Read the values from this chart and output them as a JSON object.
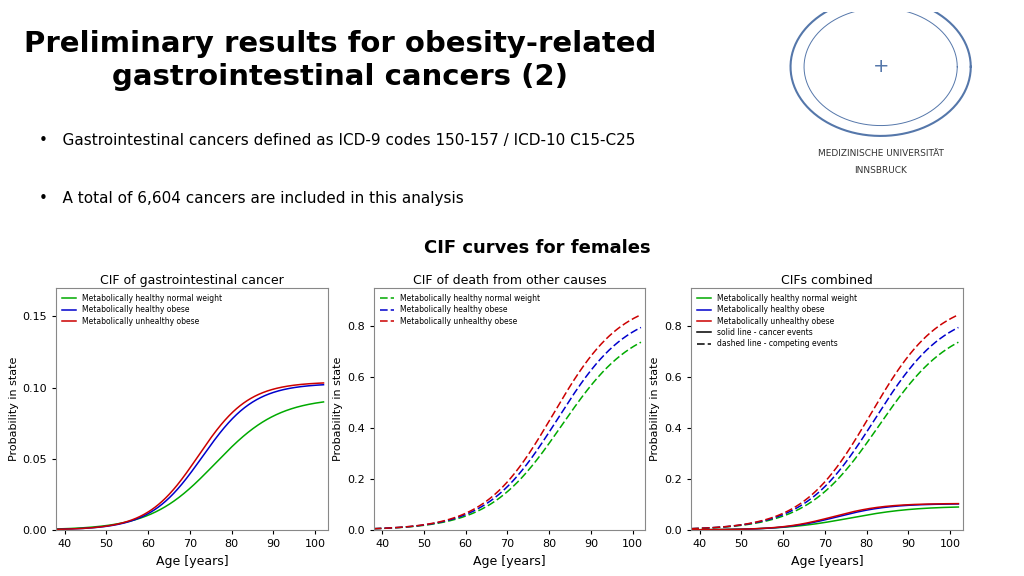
{
  "title": "Preliminary results for obesity-related\ngastrointestinal cancers (2)",
  "bullet1": "Gastrointestinal cancers defined as ICD-9 codes 150-157 / ICD-10 C15-C25",
  "bullet2": "A total of 6,604 cancers are included in this analysis",
  "section_title": "CIF curves for females",
  "plot1_title": "CIF of gastrointestinal cancer",
  "plot2_title": "CIF of death from other causes",
  "plot3_title": "CIFs combined",
  "xlabel": "Age [years]",
  "ylabel": "Probability in state",
  "colors": {
    "green": "#00AA00",
    "blue": "#0000CC",
    "red": "#CC0000",
    "black": "#000000"
  },
  "plot1_ylim": [
    0.0,
    0.17
  ],
  "plot1_yticks": [
    0.0,
    0.05,
    0.1,
    0.15
  ],
  "plot2_ylim": [
    0.0,
    0.95
  ],
  "plot2_yticks": [
    0.0,
    0.2,
    0.4,
    0.6,
    0.8
  ],
  "plot3_ylim": [
    0.0,
    0.95
  ],
  "plot3_yticks": [
    0.0,
    0.2,
    0.4,
    0.6,
    0.8
  ],
  "xticks": [
    40,
    50,
    60,
    70,
    80,
    90,
    100
  ],
  "legend1": [
    "Metabolically healthy normal weight",
    "Metabolically healthy obese",
    "Metabolically unhealthy obese"
  ],
  "legend2": [
    "Metabolically healthy normal weight",
    "Metabolically healthy obese",
    "Metabolically unhealthy obese"
  ],
  "legend3": [
    "Metabolically healthy normal weight",
    "Metabolically healthy obese",
    "Metabolically unhealthy obese",
    "solid line - cancer events",
    "dashed line - competing events"
  ],
  "background_color": "#FFFFFF"
}
